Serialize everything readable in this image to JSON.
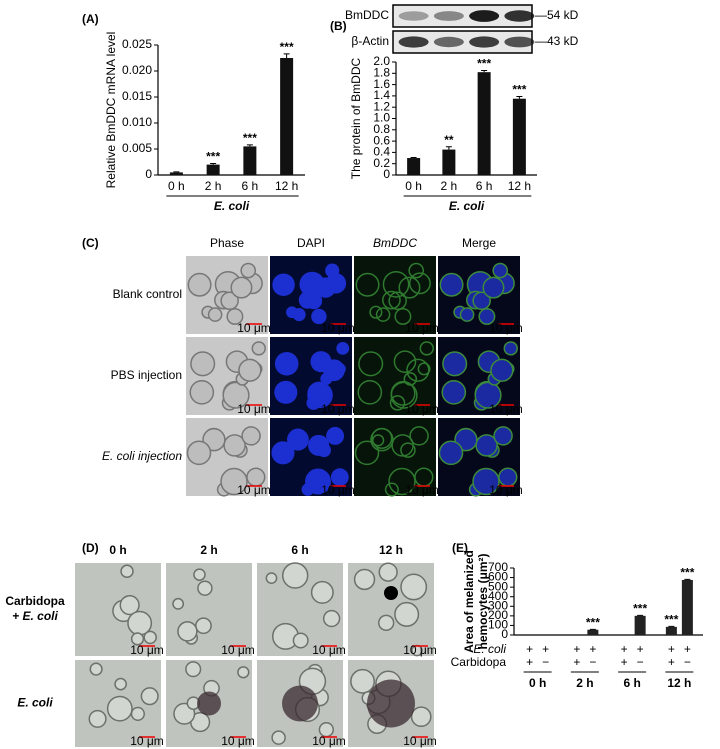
{
  "chart_data": [
    {
      "type": "bar",
      "panel_label": "(A)",
      "ylabel": "Relative BmDDC mRNA level",
      "categories": [
        "0 h",
        "2 h",
        "6 h",
        "12 h"
      ],
      "xlabel": "E. coli",
      "values": [
        0.0005,
        0.002,
        0.0055,
        0.0225
      ],
      "errors": [
        0.0001,
        0.0002,
        0.0003,
        0.0008
      ],
      "significance": [
        null,
        "***",
        "***",
        "***"
      ],
      "color": "#111111",
      "ylim": [
        0,
        0.025
      ],
      "yticks": [
        0,
        0.005,
        {
          "value": 0.01,
          "label": "0.010"
        },
        0.015,
        {
          "value": 0.02,
          "label": "0.020"
        },
        0.025
      ]
    },
    {
      "type": "bar",
      "panel_label": "(B)",
      "ylabel": "The protein of BmDDC",
      "blot": {
        "bands": [
          "BmDDC",
          "β-Actin"
        ],
        "sizes": [
          "—54 kD",
          "—43 kD"
        ]
      },
      "categories": [
        "0 h",
        "2 h",
        "6 h",
        "12 h"
      ],
      "xlabel": "E. coli",
      "values": [
        0.3,
        0.45,
        1.82,
        1.35
      ],
      "errors": [
        0.01,
        0.05,
        0.03,
        0.04
      ],
      "significance": [
        null,
        "**",
        "***",
        "***"
      ],
      "color": "#111111",
      "ylim": [
        0,
        2.0
      ],
      "yticks": [
        0,
        0.2,
        0.4,
        0.6,
        0.8,
        {
          "value": 1.0,
          "label": "1.0"
        },
        1.2,
        1.4,
        1.6,
        1.8,
        {
          "value": 2.0,
          "label": "2.0"
        }
      ]
    },
    {
      "type": "grouped_bar",
      "panel_label": "(E)",
      "ylabel": [
        "Area of melanized",
        "hemocytes (μm²)"
      ],
      "groups": [
        "0 h",
        "2 h",
        "6 h",
        "12 h"
      ],
      "sign_rows": [
        {
          "name": "E. coli",
          "signs": [
            "+",
            "+",
            "+",
            "+",
            "+",
            "+",
            "+",
            "+"
          ]
        },
        {
          "name": "Carbidopa",
          "signs": [
            "+",
            "−",
            "+",
            "−",
            "+",
            "−",
            "+",
            "−"
          ]
        }
      ],
      "values": [
        0,
        0,
        0,
        55,
        0,
        200,
        85,
        575
      ],
      "errors": [
        0,
        0,
        0,
        4,
        0,
        5,
        5,
        6
      ],
      "significance": [
        null,
        null,
        null,
        "***",
        null,
        "***",
        "***",
        "***"
      ],
      "color": "#222222",
      "ylim": [
        0,
        700
      ],
      "yticks": [
        0,
        100,
        200,
        300,
        400,
        500,
        600,
        700
      ]
    }
  ],
  "microscopy": [
    {
      "panel_label": "(C)",
      "columns": [
        "Phase",
        "DAPI",
        "BmDDC",
        "Merge"
      ],
      "rows": [
        [
          "Blank control"
        ],
        [
          "PBS injection"
        ],
        [
          "E. coli injection"
        ]
      ],
      "scale_bar": "10 μm"
    },
    {
      "panel_label": "(D)",
      "columns": [
        "0 h",
        "2 h",
        "6 h",
        "12 h"
      ],
      "rows": [
        [
          "Carbidopa",
          "+ E. coli"
        ],
        [
          "E. coli"
        ]
      ],
      "scale_bar": "10 μm"
    }
  ]
}
